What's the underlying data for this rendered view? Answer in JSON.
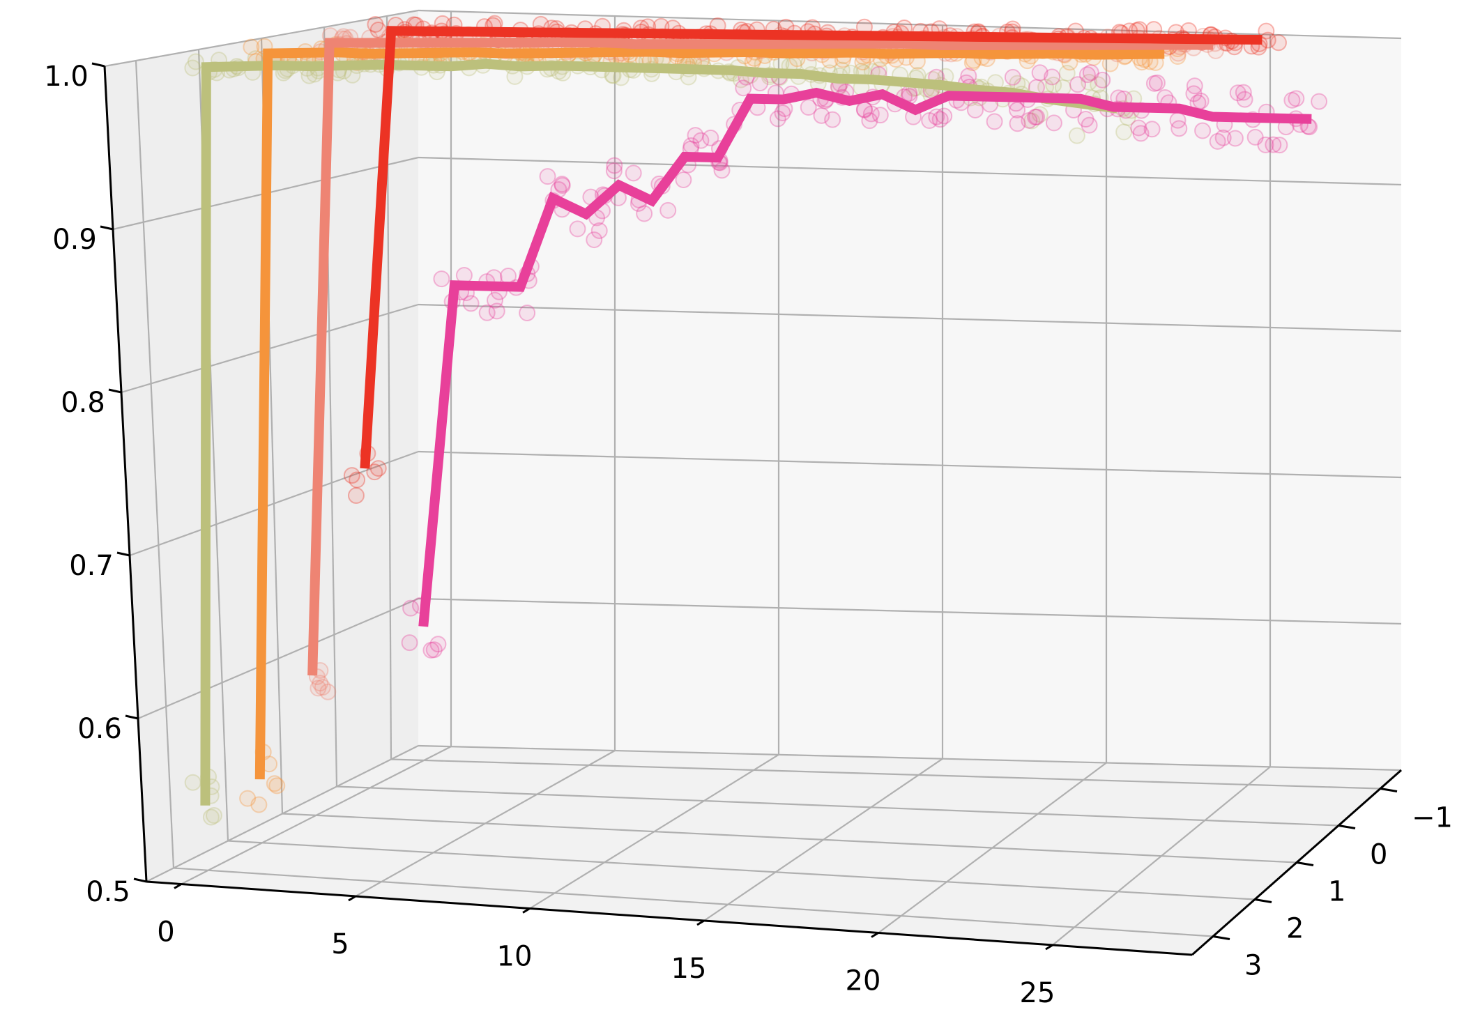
{
  "chart_data": {
    "type": "line",
    "title": "",
    "xlabel": "",
    "ylabel": "",
    "zlabel": "",
    "projection": "3d",
    "grid": true,
    "legend": "none",
    "xlim": [
      -1,
      29
    ],
    "ylim": [
      -1.5,
      3.5
    ],
    "zlim": [
      0.5,
      1.0
    ],
    "x_ticks": [
      "0",
      "5",
      "10",
      "15",
      "20",
      "25"
    ],
    "y_ticks": [
      "−1",
      "0",
      "1",
      "2",
      "3"
    ],
    "z_ticks": [
      "0.5",
      "0.6",
      "0.7",
      "0.8",
      "0.9",
      "1.0"
    ],
    "series": [
      {
        "color": "#bcc07c",
        "depth": 3,
        "x": [
          0,
          1,
          2,
          3,
          4,
          5,
          6,
          7,
          8,
          9,
          10,
          11,
          12,
          13,
          14,
          15,
          16,
          17,
          18,
          19,
          20,
          21,
          22,
          23,
          24,
          25,
          26,
          27
        ],
        "values": [
          0.54,
          0.995,
          0.995,
          0.995,
          0.994,
          0.994,
          0.994,
          0.993,
          0.992,
          0.993,
          0.991,
          0.991,
          0.99,
          0.989,
          0.988,
          0.987,
          0.986,
          0.984,
          0.983,
          0.98,
          0.979,
          0.977,
          0.975,
          0.972,
          0.97,
          0.966,
          0.963,
          0.96
        ]
      },
      {
        "color": "#f5943b",
        "depth": 2,
        "x": [
          0,
          1,
          2,
          3,
          4,
          5,
          6,
          7,
          8,
          9,
          10,
          11,
          12,
          13,
          14,
          15,
          16,
          17,
          18,
          19,
          20,
          21,
          22,
          23,
          24,
          25,
          26,
          27
        ],
        "values": [
          0.54,
          0.997,
          0.997,
          0.997,
          0.996,
          0.996,
          0.996,
          0.996,
          0.995,
          0.995,
          0.995,
          0.995,
          0.995,
          0.994,
          0.994,
          0.994,
          0.993,
          0.993,
          0.993,
          0.992,
          0.992,
          0.992,
          0.991,
          0.991,
          0.991,
          0.99,
          0.99,
          0.99
        ]
      },
      {
        "color": "#ee8473",
        "depth": 1,
        "x": [
          0,
          1,
          2,
          3,
          4,
          5,
          6,
          7,
          8,
          9,
          10,
          11,
          12,
          13,
          14,
          15,
          16,
          17,
          18,
          19,
          20,
          21,
          22,
          23,
          24,
          25,
          26,
          27
        ],
        "values": [
          0.59,
          0.997,
          0.997,
          0.997,
          0.997,
          0.997,
          0.997,
          0.997,
          0.997,
          0.997,
          0.996,
          0.996,
          0.996,
          0.996,
          0.996,
          0.996,
          0.996,
          0.996,
          0.996,
          0.995,
          0.995,
          0.995,
          0.995,
          0.995,
          0.995,
          0.995,
          0.995,
          0.995
        ]
      },
      {
        "color": "#ec3324",
        "depth": 0,
        "x": [
          0,
          1,
          2,
          3,
          4,
          5,
          6,
          7,
          8,
          9,
          10,
          11,
          12,
          13,
          14,
          15,
          16,
          17,
          18,
          19,
          20,
          21,
          22,
          23,
          24,
          25,
          26,
          27
        ],
        "values": [
          0.71,
          0.998,
          0.998,
          0.998,
          0.998,
          0.998,
          0.998,
          0.998,
          0.998,
          0.998,
          0.998,
          0.998,
          0.998,
          0.998,
          0.998,
          0.998,
          0.998,
          0.998,
          0.998,
          0.998,
          0.998,
          0.998,
          0.998,
          0.998,
          0.998,
          0.998,
          0.998,
          0.998
        ]
      },
      {
        "color": "#e8409a",
        "depth": -1,
        "x": [
          0,
          1,
          2,
          3,
          4,
          5,
          6,
          7,
          8,
          9,
          10,
          11,
          12,
          13,
          14,
          15,
          16,
          17,
          18,
          19,
          20,
          21,
          22,
          23,
          24,
          25,
          26,
          27
        ],
        "values": [
          0.59,
          0.82,
          0.82,
          0.82,
          0.88,
          0.87,
          0.89,
          0.88,
          0.91,
          0.91,
          0.95,
          0.95,
          0.955,
          0.95,
          0.955,
          0.945,
          0.955,
          0.955,
          0.955,
          0.955,
          0.955,
          0.95,
          0.95,
          0.95,
          0.945,
          0.945,
          0.945,
          0.945
        ]
      }
    ]
  }
}
